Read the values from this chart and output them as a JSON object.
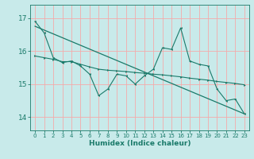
{
  "background_color": "#c8eaea",
  "grid_color": "#f5aaaa",
  "line_color": "#1a7a6a",
  "xlabel": "Humidex (Indice chaleur)",
  "xlim": [
    -0.5,
    23.5
  ],
  "ylim": [
    13.6,
    17.4
  ],
  "yticks": [
    14,
    15,
    16
  ],
  "ytick_extra": 17,
  "xticks": [
    0,
    1,
    2,
    3,
    4,
    5,
    6,
    7,
    8,
    9,
    10,
    11,
    12,
    13,
    14,
    15,
    16,
    17,
    18,
    19,
    20,
    21,
    22,
    23
  ],
  "line1_y": [
    16.9,
    16.55,
    15.8,
    15.65,
    15.7,
    15.55,
    15.3,
    14.65,
    14.85,
    15.3,
    15.25,
    15.0,
    15.25,
    15.45,
    16.1,
    16.05,
    16.7,
    15.7,
    15.6,
    15.55,
    14.85,
    14.5,
    14.55,
    14.1
  ],
  "line2_y": [
    15.85,
    15.8,
    15.75,
    15.68,
    15.68,
    15.6,
    15.52,
    15.45,
    15.42,
    15.4,
    15.38,
    15.35,
    15.33,
    15.3,
    15.28,
    15.25,
    15.22,
    15.18,
    15.15,
    15.12,
    15.08,
    15.05,
    15.02,
    14.98
  ],
  "trend_y_start": 16.75,
  "trend_y_end": 14.1
}
